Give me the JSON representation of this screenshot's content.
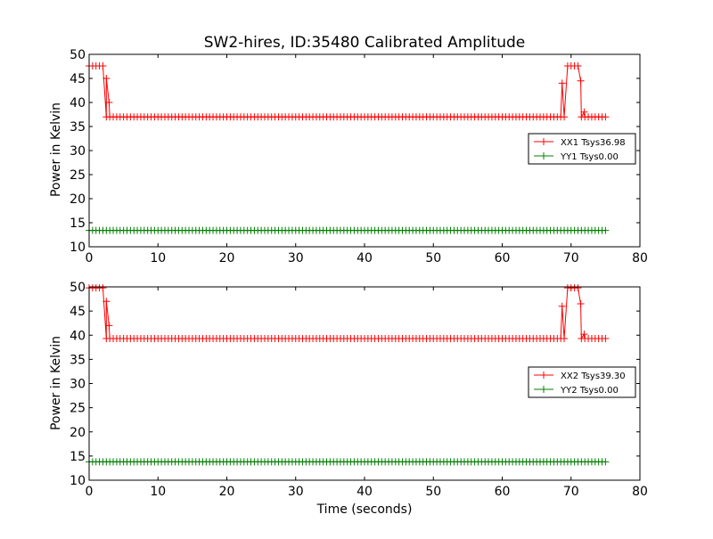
{
  "chart_data": [
    {
      "type": "line",
      "title": "SW2-hires, ID:35480 Calibrated Amplitude",
      "xlabel": "",
      "ylabel": "Power in Kelvin",
      "xlim": [
        0,
        80
      ],
      "ylim": [
        10,
        50
      ],
      "xticks": [
        "0",
        "10",
        "20",
        "30",
        "40",
        "50",
        "60",
        "70",
        "80"
      ],
      "yticks": [
        "10",
        "15",
        "20",
        "25",
        "30",
        "35",
        "40",
        "45",
        "50"
      ],
      "legend_position": "center-right",
      "x_range": [
        0,
        75
      ],
      "x_step": 0.5,
      "series": [
        {
          "name": "XX1 Tsys36.98",
          "color": "#ff0000",
          "marker": "plus",
          "baseline": 37.0,
          "plateau": 47.6,
          "plateaus": [
            [
              0,
              2.2
            ],
            [
              69.2,
              71.0
            ]
          ],
          "transition_points": [
            [
              2.5,
              45.0
            ],
            [
              2.9,
              40.0
            ],
            [
              68.7,
              44.0
            ],
            [
              71.4,
              44.5
            ],
            [
              71.9,
              38.0
            ]
          ]
        },
        {
          "name": "YY1 Tsys0.00",
          "color": "#008000",
          "marker": "plus",
          "baseline": 13.4,
          "plateau": 13.4,
          "plateaus": [],
          "transition_points": []
        }
      ]
    },
    {
      "type": "line",
      "title": "",
      "xlabel": "Time (seconds)",
      "ylabel": "Power in Kelvin",
      "xlim": [
        0,
        80
      ],
      "ylim": [
        10,
        50
      ],
      "xticks": [
        "0",
        "10",
        "20",
        "30",
        "40",
        "50",
        "60",
        "70",
        "80"
      ],
      "yticks": [
        "10",
        "15",
        "20",
        "25",
        "30",
        "35",
        "40",
        "45",
        "50"
      ],
      "legend_position": "center-right",
      "x_range": [
        0,
        75
      ],
      "x_step": 0.5,
      "series": [
        {
          "name": "XX2 Tsys39.30",
          "color": "#ff0000",
          "marker": "plus",
          "baseline": 39.3,
          "plateau": 49.8,
          "plateaus": [
            [
              0,
              2.2
            ],
            [
              69.2,
              71.0
            ]
          ],
          "transition_points": [
            [
              2.5,
              47.0
            ],
            [
              2.9,
              42.0
            ],
            [
              68.7,
              46.0
            ],
            [
              71.4,
              46.5
            ],
            [
              71.9,
              40.2
            ]
          ]
        },
        {
          "name": "YY2 Tsys0.00",
          "color": "#008000",
          "marker": "plus",
          "baseline": 13.8,
          "plateau": 13.8,
          "plateaus": [],
          "transition_points": []
        }
      ]
    }
  ]
}
